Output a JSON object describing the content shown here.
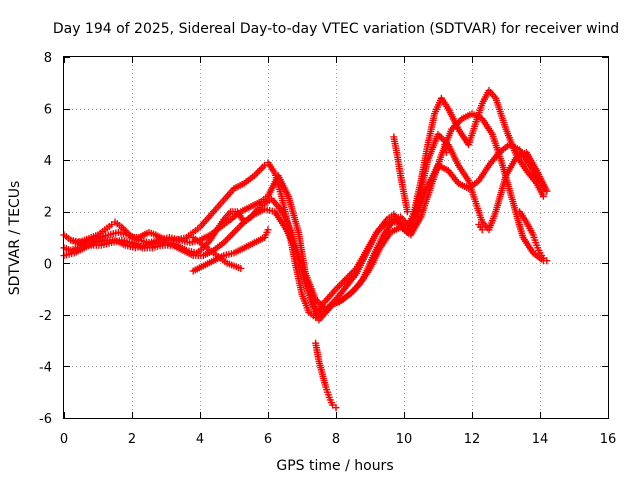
{
  "chart_data": {
    "type": "scatter",
    "title": "Day 194 of 2025, Sidereal Day-to-day VTEC variation (SDTVAR) for receiver wind",
    "xlabel": "GPS time / hours",
    "ylabel": "SDTVAR / TECUs",
    "xlim": [
      0,
      16
    ],
    "ylim": [
      -6,
      8
    ],
    "x_ticks": [
      "0",
      "2",
      "4",
      "6",
      "8",
      "10",
      "12",
      "14",
      "16"
    ],
    "y_ticks": [
      "-6",
      "-4",
      "-2",
      "0",
      "2",
      "4",
      "6",
      "8"
    ],
    "grid": true,
    "marker": "+",
    "series_color": "#ff0000",
    "series": [
      {
        "x": [
          0.0,
          0.2,
          0.4,
          0.6,
          0.8,
          1.0,
          1.2,
          1.4,
          1.5,
          1.7,
          2.0,
          2.2,
          2.5,
          2.7,
          3.0,
          3.3,
          3.6,
          3.8,
          4.0,
          4.2,
          4.4,
          4.6,
          4.8,
          5.0,
          5.3,
          5.6,
          5.9,
          6.0,
          6.2,
          6.4,
          6.6,
          6.8,
          7.0,
          7.2,
          7.4,
          7.6,
          7.8,
          8.0,
          8.3,
          8.6,
          8.9,
          9.2,
          9.5,
          9.7,
          9.9,
          10.1,
          10.3,
          10.5,
          10.7,
          10.9,
          11.1,
          11.3,
          11.6,
          11.9,
          12.1,
          12.3,
          12.5,
          12.7,
          13.0,
          13.3,
          13.6,
          13.9,
          14.1
        ],
        "y": [
          1.1,
          0.9,
          0.8,
          0.9,
          1.0,
          1.1,
          1.3,
          1.5,
          1.6,
          1.4,
          1.0,
          1.0,
          1.2,
          1.1,
          0.9,
          0.9,
          1.0,
          1.2,
          1.4,
          1.7,
          2.0,
          2.3,
          2.6,
          2.9,
          3.1,
          3.4,
          3.8,
          3.9,
          3.5,
          2.6,
          1.4,
          0.0,
          -1.2,
          -1.9,
          -2.1,
          -1.6,
          -1.3,
          -1.0,
          -0.6,
          -0.2,
          0.5,
          1.2,
          1.7,
          1.9,
          1.5,
          1.3,
          2.0,
          3.2,
          4.6,
          5.8,
          6.4,
          6.0,
          5.2,
          4.6,
          5.4,
          6.2,
          6.7,
          6.4,
          5.2,
          4.2,
          3.6,
          3.1,
          2.6
        ]
      },
      {
        "x": [
          0.0,
          0.2,
          0.4,
          0.6,
          0.8,
          1.0,
          1.3,
          1.6,
          1.9,
          2.2,
          2.5,
          2.8,
          3.1,
          3.4,
          3.7,
          4.0,
          4.3,
          4.6,
          4.9,
          5.2,
          5.5,
          5.8,
          6.0,
          6.3,
          6.6,
          6.9,
          7.1,
          7.3,
          7.5,
          7.7,
          7.9,
          8.2,
          8.5,
          8.8,
          9.1,
          9.4,
          9.7,
          9.9,
          10.1,
          10.3,
          10.5,
          10.7,
          11.0,
          11.3,
          11.6,
          11.9,
          12.1,
          12.3,
          12.5,
          12.7,
          13.0,
          13.3,
          13.6,
          13.9,
          14.2
        ],
        "y": [
          0.6,
          0.5,
          0.6,
          0.8,
          0.9,
          1.0,
          1.1,
          1.2,
          1.1,
          0.9,
          0.8,
          0.9,
          1.0,
          0.9,
          0.8,
          0.9,
          1.1,
          1.4,
          1.7,
          2.0,
          2.2,
          2.4,
          2.6,
          3.4,
          2.6,
          1.2,
          -0.4,
          -1.5,
          -2.0,
          -1.8,
          -1.6,
          -1.4,
          -1.1,
          -0.6,
          0.3,
          1.1,
          1.7,
          1.8,
          1.5,
          1.8,
          2.8,
          4.0,
          5.0,
          4.6,
          3.8,
          3.2,
          2.4,
          1.6,
          1.3,
          2.0,
          3.4,
          4.1,
          4.3,
          3.6,
          2.8
        ]
      },
      {
        "x": [
          0.0,
          0.3,
          0.6,
          0.9,
          1.2,
          1.5,
          1.8,
          2.1,
          2.4,
          2.7,
          3.0,
          3.3,
          3.6,
          3.9,
          4.1,
          4.3,
          4.5,
          4.7,
          4.9,
          5.1,
          5.3,
          5.5,
          5.7,
          5.9,
          6.1,
          6.3,
          6.5,
          6.7,
          6.9,
          7.1,
          7.3,
          7.5,
          7.7,
          7.9,
          8.1,
          8.4,
          8.7,
          9.0,
          9.3,
          9.6,
          9.9,
          10.2,
          10.5,
          10.8,
          11.1,
          11.4,
          11.7,
          12.0,
          12.3,
          12.6,
          12.9,
          13.2,
          13.5,
          13.8,
          14.1
        ],
        "y": [
          0.3,
          0.4,
          0.6,
          0.8,
          0.9,
          0.9,
          0.7,
          0.6,
          0.7,
          0.8,
          0.8,
          0.7,
          0.5,
          0.4,
          0.6,
          0.9,
          1.3,
          1.7,
          2.0,
          2.0,
          1.6,
          1.8,
          2.1,
          2.3,
          2.5,
          2.2,
          1.8,
          1.2,
          0.2,
          -0.8,
          -1.6,
          -2.2,
          -1.9,
          -1.6,
          -1.5,
          -1.2,
          -0.8,
          -0.2,
          0.6,
          1.2,
          1.4,
          1.1,
          1.8,
          3.0,
          4.2,
          5.2,
          5.6,
          5.8,
          5.6,
          5.0,
          3.8,
          2.4,
          1.0,
          0.4,
          0.1
        ]
      },
      {
        "x": [
          0.2,
          0.5,
          0.8,
          1.1,
          1.4,
          1.7,
          2.0,
          2.3,
          2.6,
          2.9,
          3.2,
          3.5,
          3.8,
          4.1,
          4.4,
          4.7,
          5.0,
          5.3,
          5.6,
          5.9,
          6.2,
          6.5,
          6.8,
          7.1,
          7.4,
          7.7,
          8.0,
          8.3,
          8.6,
          8.9,
          9.2,
          9.5,
          9.8,
          10.1,
          10.4,
          10.7,
          11.0,
          11.3,
          11.6,
          11.9,
          12.2,
          12.5,
          12.8,
          13.1,
          13.4,
          13.7,
          14.0,
          14.2
        ],
        "y": [
          0.9,
          0.8,
          0.7,
          0.7,
          0.8,
          0.9,
          0.8,
          0.6,
          0.6,
          0.7,
          0.7,
          0.5,
          0.3,
          0.3,
          0.5,
          0.8,
          1.2,
          1.6,
          1.9,
          2.1,
          2.0,
          1.4,
          0.6,
          -0.4,
          -1.4,
          -1.8,
          -1.4,
          -0.9,
          -0.4,
          0.4,
          1.2,
          1.6,
          1.6,
          1.2,
          2.0,
          3.0,
          3.8,
          3.6,
          3.1,
          2.9,
          3.2,
          3.8,
          4.3,
          4.6,
          4.4,
          3.8,
          3.2,
          2.8
        ]
      },
      {
        "x": [
          3.8,
          4.0,
          4.2,
          4.4,
          4.6,
          4.8,
          5.0,
          5.2
        ],
        "y": [
          1.0,
          0.8,
          0.6,
          0.4,
          0.2,
          0.0,
          -0.1,
          -0.2
        ]
      },
      {
        "x": [
          3.8,
          4.1,
          4.4,
          4.7,
          5.0,
          5.3,
          5.6,
          5.9,
          6.0
        ],
        "y": [
          -0.3,
          -0.1,
          0.1,
          0.3,
          0.4,
          0.6,
          0.8,
          1.0,
          1.3
        ]
      },
      {
        "x": [
          7.4,
          7.5,
          7.6,
          7.7,
          7.8,
          7.9,
          8.0
        ],
        "y": [
          -3.1,
          -3.8,
          -4.3,
          -4.8,
          -5.2,
          -5.5,
          -5.6
        ]
      },
      {
        "x": [
          9.7,
          9.8,
          9.9,
          10.0,
          10.1
        ],
        "y": [
          4.9,
          4.2,
          3.4,
          2.7,
          2.0
        ]
      },
      {
        "x": [
          13.4,
          13.6,
          13.8,
          13.9,
          14.0,
          14.1,
          14.2
        ],
        "y": [
          2.0,
          1.6,
          1.1,
          0.7,
          0.4,
          0.2,
          0.1
        ]
      },
      {
        "x": [
          11.2,
          11.25,
          12.2,
          12.3
        ],
        "y": [
          4.6,
          4.3,
          1.5,
          1.3
        ]
      }
    ]
  }
}
